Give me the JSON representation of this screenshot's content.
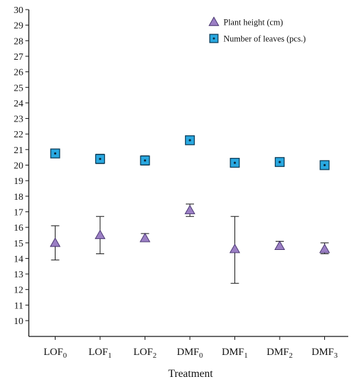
{
  "chart_data": {
    "type": "scatter",
    "title": "",
    "xlabel": "Treatment",
    "ylabel": "",
    "ylim": [
      10,
      30
    ],
    "yticks": [
      10,
      11,
      12,
      13,
      14,
      15,
      16,
      17,
      18,
      19,
      20,
      21,
      22,
      23,
      24,
      25,
      26,
      27,
      28,
      29,
      30
    ],
    "categories": [
      {
        "base": "LOF",
        "sub": "0"
      },
      {
        "base": "LOF",
        "sub": "1"
      },
      {
        "base": "LOF",
        "sub": "2"
      },
      {
        "base": "DMF",
        "sub": "0"
      },
      {
        "base": "DMF",
        "sub": "1"
      },
      {
        "base": "DMF",
        "sub": "2"
      },
      {
        "base": "DMF",
        "sub": "3"
      }
    ],
    "legend_position": "top-right",
    "grid": false,
    "series": [
      {
        "name": "Plant height (cm)",
        "marker": "triangle",
        "color": "#9b7fc4",
        "values": [
          15.0,
          15.5,
          15.3,
          17.1,
          14.6,
          14.8,
          14.6
        ],
        "error_low": [
          13.9,
          14.3,
          15.1,
          16.7,
          12.4,
          14.6,
          14.3
        ],
        "error_high": [
          16.1,
          16.7,
          15.6,
          17.5,
          16.7,
          15.1,
          15.0
        ]
      },
      {
        "name": "Number of leaves (pcs.)",
        "marker": "square",
        "color": "#29a8e0",
        "values": [
          20.75,
          20.4,
          20.3,
          21.6,
          20.15,
          20.2,
          20.0
        ],
        "error_low": [
          20.6,
          20.1,
          20.0,
          21.4,
          20.0,
          20.05,
          19.9
        ],
        "error_high": [
          20.9,
          20.7,
          20.6,
          21.8,
          20.3,
          20.35,
          20.1
        ]
      }
    ]
  }
}
